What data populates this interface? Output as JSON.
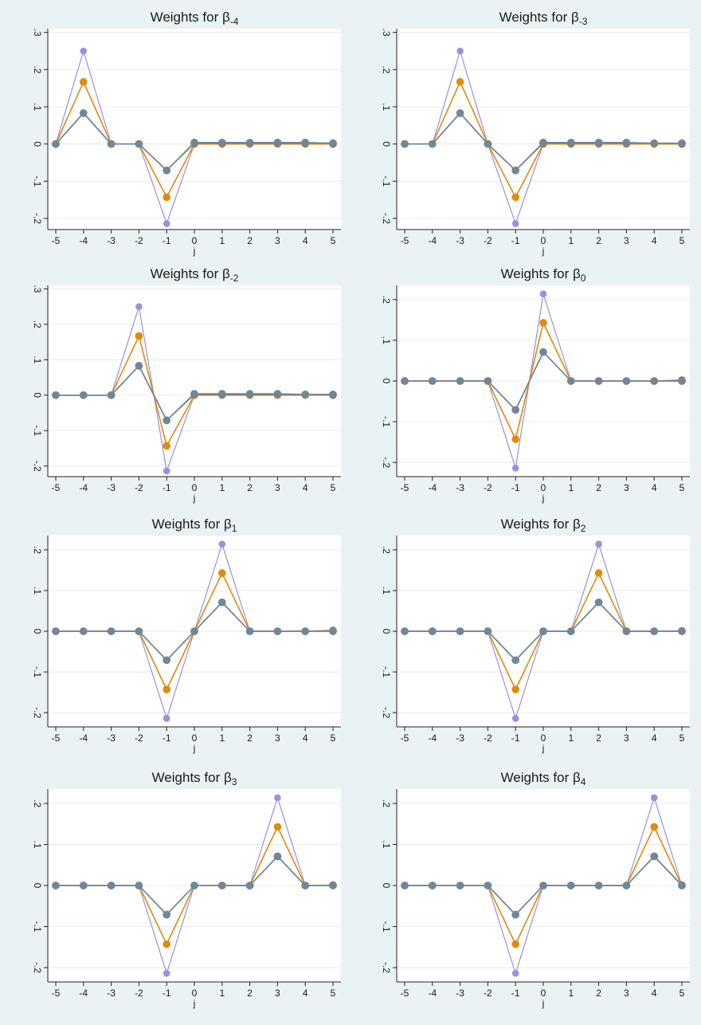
{
  "colors": {
    "background": "#eaf2f3",
    "plot_area": "#ffffff",
    "grid": "#e6ecee",
    "axis": "#222222",
    "series_1": "#9b8fe0",
    "series_2": "#e08a10",
    "series_3": "#8b7468",
    "series_4": "#6f8797",
    "last_marker": "#b54a2e"
  },
  "chart_data": [
    {
      "type": "line",
      "title_prefix": "Weights for β",
      "title_sub": "-4",
      "xlabel": "j",
      "ylabel": "",
      "x": [
        -5,
        -4,
        -3,
        -2,
        -1,
        0,
        1,
        2,
        3,
        4,
        5
      ],
      "xticks": [
        "-5",
        "-4",
        "-3",
        "-2",
        "-1",
        "0",
        "1",
        "2",
        "3",
        "4",
        "5"
      ],
      "ylim": [
        -0.23,
        0.31
      ],
      "yticks": [
        {
          "v": -0.2,
          "label": "-.2"
        },
        {
          "v": -0.1,
          "label": "-.1"
        },
        {
          "v": 0,
          "label": "0"
        },
        {
          "v": 0.1,
          "label": ".1"
        },
        {
          "v": 0.2,
          "label": ".2"
        },
        {
          "v": 0.3,
          "label": ".3"
        }
      ],
      "grid": true,
      "series": [
        {
          "values": [
            0,
            0.25,
            0,
            0,
            -0.214,
            0,
            0,
            0,
            0,
            0,
            0
          ]
        },
        {
          "values": [
            0,
            0.167,
            0,
            0,
            -0.143,
            0,
            0,
            0,
            0,
            0,
            0
          ]
        },
        {
          "values": [
            0,
            0.083,
            0,
            0,
            -0.071,
            0.002,
            0.002,
            0.002,
            0.002,
            0.002,
            0.002
          ]
        },
        {
          "values": [
            0,
            0.083,
            0,
            0,
            -0.071,
            0.004,
            0.004,
            0.004,
            0.004,
            0.004,
            0.002
          ]
        }
      ]
    },
    {
      "type": "line",
      "title_prefix": "Weights for β",
      "title_sub": "-3",
      "xlabel": "j",
      "ylabel": "",
      "x": [
        -5,
        -4,
        -3,
        -2,
        -1,
        0,
        1,
        2,
        3,
        4,
        5
      ],
      "xticks": [
        "-5",
        "-4",
        "-3",
        "-2",
        "-1",
        "0",
        "1",
        "2",
        "3",
        "4",
        "5"
      ],
      "ylim": [
        -0.23,
        0.31
      ],
      "yticks": [
        {
          "v": -0.2,
          "label": "-.2"
        },
        {
          "v": -0.1,
          "label": "-.1"
        },
        {
          "v": 0,
          "label": "0"
        },
        {
          "v": 0.1,
          "label": ".1"
        },
        {
          "v": 0.2,
          "label": ".2"
        },
        {
          "v": 0.3,
          "label": ".3"
        }
      ],
      "grid": true,
      "series": [
        {
          "values": [
            0,
            0,
            0.25,
            0,
            -0.214,
            0,
            0,
            0,
            0,
            0,
            0
          ]
        },
        {
          "values": [
            0,
            0,
            0.167,
            0,
            -0.143,
            0,
            0,
            0,
            0,
            0,
            0
          ]
        },
        {
          "values": [
            0,
            0,
            0.083,
            0,
            -0.071,
            0.002,
            0.002,
            0.002,
            0.002,
            0.002,
            0.002
          ]
        },
        {
          "values": [
            0,
            0,
            0.083,
            0,
            -0.071,
            0.004,
            0.004,
            0.004,
            0.004,
            0.002,
            0.002
          ]
        }
      ]
    },
    {
      "type": "line",
      "title_prefix": "Weights for β",
      "title_sub": "-2",
      "xlabel": "j",
      "ylabel": "",
      "x": [
        -5,
        -4,
        -3,
        -2,
        -1,
        0,
        1,
        2,
        3,
        4,
        5
      ],
      "xticks": [
        "-5",
        "-4",
        "-3",
        "-2",
        "-1",
        "0",
        "1",
        "2",
        "3",
        "4",
        "5"
      ],
      "ylim": [
        -0.23,
        0.31
      ],
      "yticks": [
        {
          "v": -0.2,
          "label": "-.2"
        },
        {
          "v": -0.1,
          "label": "-.1"
        },
        {
          "v": 0,
          "label": "0"
        },
        {
          "v": 0.1,
          "label": ".1"
        },
        {
          "v": 0.2,
          "label": ".2"
        },
        {
          "v": 0.3,
          "label": ".3"
        }
      ],
      "grid": true,
      "series": [
        {
          "values": [
            0,
            0,
            0,
            0.25,
            -0.214,
            0,
            0,
            0,
            0,
            0,
            0
          ]
        },
        {
          "values": [
            0,
            0,
            0,
            0.167,
            -0.143,
            0,
            0,
            0,
            0,
            0,
            0
          ]
        },
        {
          "values": [
            0,
            0,
            0,
            0.083,
            -0.071,
            0.002,
            0.002,
            0.002,
            0.002,
            0.002,
            0.002
          ]
        },
        {
          "values": [
            0,
            0,
            0,
            0.083,
            -0.071,
            0.004,
            0.004,
            0.004,
            0.004,
            0.002,
            0.002
          ]
        }
      ]
    },
    {
      "type": "line",
      "title_prefix": "Weights for β",
      "title_sub": "0",
      "xlabel": "j",
      "ylabel": "",
      "x": [
        -5,
        -4,
        -3,
        -2,
        -1,
        0,
        1,
        2,
        3,
        4,
        5
      ],
      "xticks": [
        "-5",
        "-4",
        "-3",
        "-2",
        "-1",
        "0",
        "1",
        "2",
        "3",
        "4",
        "5"
      ],
      "ylim": [
        -0.235,
        0.235
      ],
      "yticks": [
        {
          "v": -0.2,
          "label": "-.2"
        },
        {
          "v": -0.1,
          "label": "-.1"
        },
        {
          "v": 0,
          "label": "0"
        },
        {
          "v": 0.1,
          "label": ".1"
        },
        {
          "v": 0.2,
          "label": ".2"
        }
      ],
      "grid": true,
      "series": [
        {
          "values": [
            0,
            0,
            0,
            0,
            -0.214,
            0.214,
            0,
            0,
            0,
            0,
            0
          ]
        },
        {
          "values": [
            0,
            0,
            0,
            0,
            -0.143,
            0.143,
            0,
            0,
            0,
            0,
            0
          ]
        },
        {
          "values": [
            0,
            0,
            0,
            0,
            -0.071,
            0.071,
            0,
            0,
            0,
            0,
            0.002
          ]
        },
        {
          "values": [
            0,
            0,
            0,
            0,
            -0.071,
            0.071,
            0,
            0,
            0,
            0,
            0
          ]
        }
      ]
    },
    {
      "type": "line",
      "title_prefix": "Weights for β",
      "title_sub": "1",
      "xlabel": "j",
      "ylabel": "",
      "x": [
        -5,
        -4,
        -3,
        -2,
        -1,
        0,
        1,
        2,
        3,
        4,
        5
      ],
      "xticks": [
        "-5",
        "-4",
        "-3",
        "-2",
        "-1",
        "0",
        "1",
        "2",
        "3",
        "4",
        "5"
      ],
      "ylim": [
        -0.235,
        0.235
      ],
      "yticks": [
        {
          "v": -0.2,
          "label": "-.2"
        },
        {
          "v": -0.1,
          "label": "-.1"
        },
        {
          "v": 0,
          "label": "0"
        },
        {
          "v": 0.1,
          "label": ".1"
        },
        {
          "v": 0.2,
          "label": ".2"
        }
      ],
      "grid": true,
      "series": [
        {
          "values": [
            0,
            0,
            0,
            0,
            -0.214,
            0,
            0.214,
            0,
            0,
            0,
            0
          ]
        },
        {
          "values": [
            0,
            0,
            0,
            0,
            -0.143,
            0,
            0.143,
            0,
            0,
            0,
            0
          ]
        },
        {
          "values": [
            0,
            0,
            0,
            0,
            -0.071,
            0,
            0.071,
            0,
            0,
            0,
            0.002
          ]
        },
        {
          "values": [
            0,
            0,
            0,
            0,
            -0.071,
            0,
            0.071,
            0,
            0,
            0,
            0
          ]
        }
      ]
    },
    {
      "type": "line",
      "title_prefix": "Weights for β",
      "title_sub": "2",
      "xlabel": "j",
      "ylabel": "",
      "x": [
        -5,
        -4,
        -3,
        -2,
        -1,
        0,
        1,
        2,
        3,
        4,
        5
      ],
      "xticks": [
        "-5",
        "-4",
        "-3",
        "-2",
        "-1",
        "0",
        "1",
        "2",
        "3",
        "4",
        "5"
      ],
      "ylim": [
        -0.235,
        0.235
      ],
      "yticks": [
        {
          "v": -0.2,
          "label": "-.2"
        },
        {
          "v": -0.1,
          "label": "-.1"
        },
        {
          "v": 0,
          "label": "0"
        },
        {
          "v": 0.1,
          "label": ".1"
        },
        {
          "v": 0.2,
          "label": ".2"
        }
      ],
      "grid": true,
      "series": [
        {
          "values": [
            0,
            0,
            0,
            0,
            -0.214,
            0,
            0,
            0.214,
            0,
            0,
            0
          ]
        },
        {
          "values": [
            0,
            0,
            0,
            0,
            -0.143,
            0,
            0,
            0.143,
            0,
            0,
            0
          ]
        },
        {
          "values": [
            0,
            0,
            0,
            0,
            -0.071,
            0,
            0,
            0.071,
            0,
            0,
            0.001
          ]
        },
        {
          "values": [
            0,
            0,
            0,
            0,
            -0.071,
            0,
            0,
            0.071,
            0,
            0,
            0
          ]
        }
      ]
    },
    {
      "type": "line",
      "title_prefix": "Weights for β",
      "title_sub": "3",
      "xlabel": "j",
      "ylabel": "",
      "x": [
        -5,
        -4,
        -3,
        -2,
        -1,
        0,
        1,
        2,
        3,
        4,
        5
      ],
      "xticks": [
        "-5",
        "-4",
        "-3",
        "-2",
        "-1",
        "0",
        "1",
        "2",
        "3",
        "4",
        "5"
      ],
      "ylim": [
        -0.235,
        0.235
      ],
      "yticks": [
        {
          "v": -0.2,
          "label": "-.2"
        },
        {
          "v": -0.1,
          "label": "-.1"
        },
        {
          "v": 0,
          "label": "0"
        },
        {
          "v": 0.1,
          "label": ".1"
        },
        {
          "v": 0.2,
          "label": ".2"
        }
      ],
      "grid": true,
      "series": [
        {
          "values": [
            0,
            0,
            0,
            0,
            -0.214,
            0,
            0,
            0,
            0.214,
            0,
            0
          ]
        },
        {
          "values": [
            0,
            0,
            0,
            0,
            -0.143,
            0,
            0,
            0,
            0.143,
            0,
            0
          ]
        },
        {
          "values": [
            0,
            0,
            0,
            0,
            -0.071,
            0,
            0,
            0,
            0.071,
            0,
            0.001
          ]
        },
        {
          "values": [
            0,
            0,
            0,
            0,
            -0.071,
            0,
            0,
            0,
            0.071,
            0,
            0
          ]
        }
      ]
    },
    {
      "type": "line",
      "title_prefix": "Weights for β",
      "title_sub": "4",
      "xlabel": "j",
      "ylabel": "",
      "x": [
        -5,
        -4,
        -3,
        -2,
        -1,
        0,
        1,
        2,
        3,
        4,
        5
      ],
      "xticks": [
        "-5",
        "-4",
        "-3",
        "-2",
        "-1",
        "0",
        "1",
        "2",
        "3",
        "4",
        "5"
      ],
      "ylim": [
        -0.235,
        0.235
      ],
      "yticks": [
        {
          "v": -0.2,
          "label": "-.2"
        },
        {
          "v": -0.1,
          "label": "-.1"
        },
        {
          "v": 0,
          "label": "0"
        },
        {
          "v": 0.1,
          "label": ".1"
        },
        {
          "v": 0.2,
          "label": ".2"
        }
      ],
      "grid": true,
      "series": [
        {
          "values": [
            0,
            0,
            0,
            0,
            -0.214,
            0,
            0,
            0,
            0,
            0.214,
            0
          ]
        },
        {
          "values": [
            0,
            0,
            0,
            0,
            -0.143,
            0,
            0,
            0,
            0,
            0.143,
            0
          ]
        },
        {
          "values": [
            0,
            0,
            0,
            0,
            -0.071,
            0,
            0,
            0,
            0,
            0.071,
            0.001
          ]
        },
        {
          "values": [
            0,
            0,
            0,
            0,
            -0.071,
            0,
            0,
            0,
            0,
            0.071,
            0
          ]
        }
      ]
    }
  ]
}
